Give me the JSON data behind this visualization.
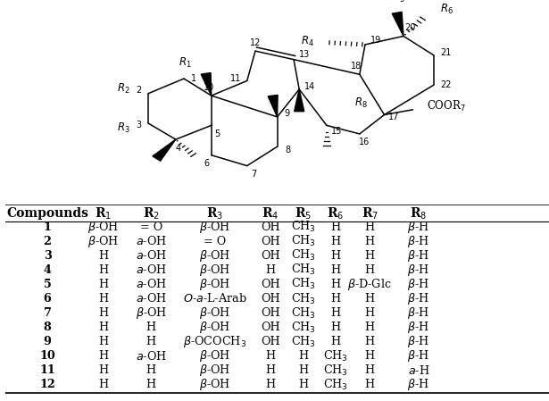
{
  "col_headers_display": [
    "Compounds",
    "R$_1$",
    "R$_2$",
    "R$_3$",
    "R$_4$",
    "R$_5$",
    "R$_6$",
    "R$_7$",
    "R$_8$"
  ],
  "rows": [
    [
      "1",
      "$\\beta$-OH",
      "= O",
      "$\\beta$-OH",
      "OH",
      "CH$_3$",
      "H",
      "H",
      "$\\beta$-H"
    ],
    [
      "2",
      "$\\beta$-OH",
      "$a$-OH",
      "= O",
      "OH",
      "CH$_3$",
      "H",
      "H",
      "$\\beta$-H"
    ],
    [
      "3",
      "H",
      "$a$-OH",
      "$\\beta$-OH",
      "OH",
      "CH$_3$",
      "H",
      "H",
      "$\\beta$-H"
    ],
    [
      "4",
      "H",
      "$a$-OH",
      "$\\beta$-OH",
      "H",
      "CH$_3$",
      "H",
      "H",
      "$\\beta$-H"
    ],
    [
      "5",
      "H",
      "$a$-OH",
      "$\\beta$-OH",
      "OH",
      "CH$_3$",
      "H",
      "$\\beta$-D-Glc",
      "$\\beta$-H"
    ],
    [
      "6",
      "H",
      "$a$-OH",
      "$O$-$a$-L-Arab",
      "OH",
      "CH$_3$",
      "H",
      "H",
      "$\\beta$-H"
    ],
    [
      "7",
      "H",
      "$\\beta$-OH",
      "$\\beta$-OH",
      "OH",
      "CH$_3$",
      "H",
      "H",
      "$\\beta$-H"
    ],
    [
      "8",
      "H",
      "H",
      "$\\beta$-OH",
      "OH",
      "CH$_3$",
      "H",
      "H",
      "$\\beta$-H"
    ],
    [
      "9",
      "H",
      "H",
      "$\\beta$-OCOCH$_3$",
      "OH",
      "CH$_3$",
      "H",
      "H",
      "$\\beta$-H"
    ],
    [
      "10",
      "H",
      "$a$-OH",
      "$\\beta$-OH",
      "H",
      "H",
      "CH$_3$",
      "H",
      "$\\beta$-H"
    ],
    [
      "11",
      "H",
      "H",
      "$\\beta$-OH",
      "H",
      "H",
      "CH$_3$",
      "H",
      "$a$-H"
    ],
    [
      "12",
      "H",
      "H",
      "$\\beta$-OH",
      "H",
      "H",
      "CH$_3$",
      "H",
      "$\\beta$-H"
    ]
  ],
  "figure_bg": "#ffffff"
}
